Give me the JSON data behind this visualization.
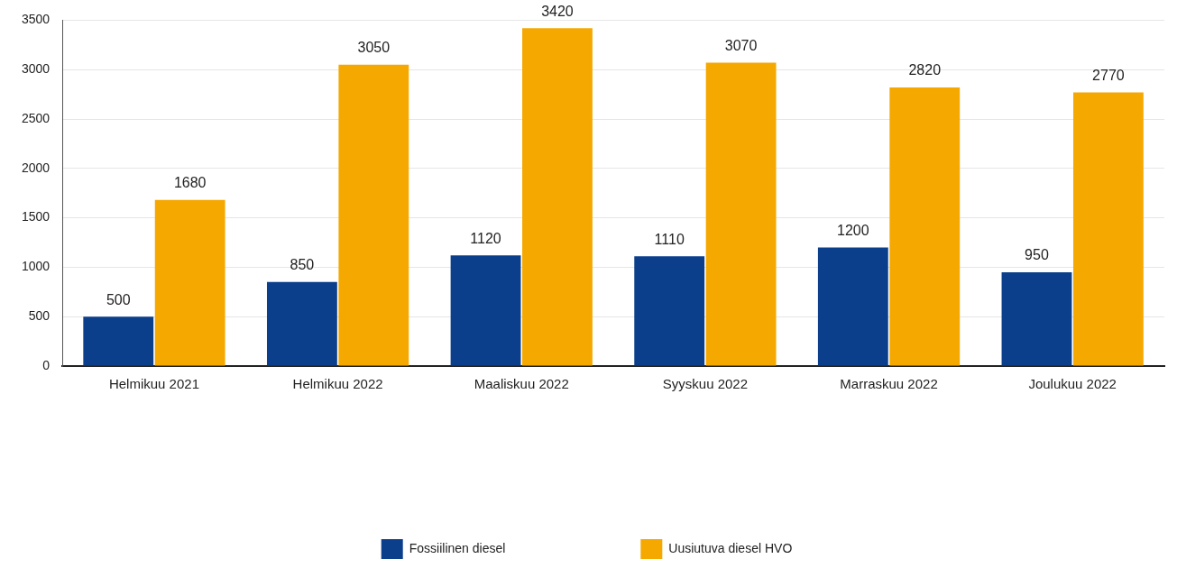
{
  "chart_data": {
    "type": "bar",
    "categories": [
      "Helmikuu 2021",
      "Helmikuu 2022",
      "Maaliskuu 2022",
      "Syyskuu 2022",
      "Marraskuu 2022",
      "Joulukuu 2022"
    ],
    "series": [
      {
        "name": "Fossiilinen diesel",
        "color": "#0b3f8c",
        "values": [
          500,
          850,
          1120,
          1110,
          1200,
          950
        ]
      },
      {
        "name": "Uusiutuva diesel HVO",
        "color": "#f5a800",
        "values": [
          1680,
          3050,
          3420,
          3070,
          2820,
          2770
        ]
      }
    ],
    "ylim": [
      0,
      3500
    ],
    "yticks": [
      0,
      500,
      1000,
      1500,
      2000,
      2500,
      3000,
      3500
    ],
    "grid": "y",
    "legend": "bottom",
    "data_labels": true
  }
}
